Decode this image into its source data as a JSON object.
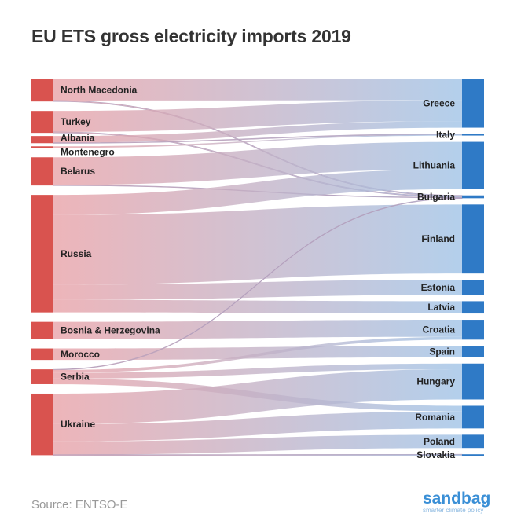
{
  "chart_data": {
    "type": "sankey",
    "title": "EU ETS gross electricity imports 2019",
    "source_label": "Source: ENTSO-E",
    "brand": "sandbag",
    "brand_tagline": "smarter climate policy",
    "colors": {
      "source_node": "#d9534f",
      "target_node": "#2f7ac6",
      "link_start": "#e8a0a6",
      "link_end": "#9ec2e6"
    },
    "sources": [
      "North Macedonia",
      "Turkey",
      "Albania",
      "Montenegro",
      "Belarus",
      "Russia",
      "Bosnia & Herzegovina",
      "Morocco",
      "Serbia",
      "Ukraine"
    ],
    "targets": [
      "Greece",
      "Italy",
      "Lithuania",
      "Bulgaria",
      "Finland",
      "Estonia",
      "Latvia",
      "Croatia",
      "Spain",
      "Hungary",
      "Romania",
      "Poland",
      "Slovakia"
    ],
    "links": [
      {
        "from": "North Macedonia",
        "to": "Greece",
        "value": 2.3
      },
      {
        "from": "North Macedonia",
        "to": "Bulgaria",
        "value": 0.1
      },
      {
        "from": "Turkey",
        "to": "Greece",
        "value": 2.2
      },
      {
        "from": "Turkey",
        "to": "Bulgaria",
        "value": 0.1
      },
      {
        "from": "Albania",
        "to": "Greece",
        "value": 0.7
      },
      {
        "from": "Albania",
        "to": "Italy",
        "value": 0.05
      },
      {
        "from": "Montenegro",
        "to": "Italy",
        "value": 0.05
      },
      {
        "from": "Belarus",
        "to": "Lithuania",
        "value": 2.9
      },
      {
        "from": "Belarus",
        "to": "Bulgaria",
        "value": 0.05
      },
      {
        "from": "Russia",
        "to": "Lithuania",
        "value": 2.1
      },
      {
        "from": "Russia",
        "to": "Finland",
        "value": 7.3
      },
      {
        "from": "Russia",
        "to": "Estonia",
        "value": 1.6
      },
      {
        "from": "Russia",
        "to": "Latvia",
        "value": 1.3
      },
      {
        "from": "Bosnia & Herzegovina",
        "to": "Croatia",
        "value": 1.8
      },
      {
        "from": "Morocco",
        "to": "Spain",
        "value": 1.2
      },
      {
        "from": "Serbia",
        "to": "Bulgaria",
        "value": 0.05
      },
      {
        "from": "Serbia",
        "to": "Croatia",
        "value": 0.3
      },
      {
        "from": "Serbia",
        "to": "Hungary",
        "value": 0.6
      },
      {
        "from": "Serbia",
        "to": "Romania",
        "value": 0.6
      },
      {
        "from": "Ukraine",
        "to": "Hungary",
        "value": 3.2
      },
      {
        "from": "Ukraine",
        "to": "Romania",
        "value": 1.8
      },
      {
        "from": "Ukraine",
        "to": "Poland",
        "value": 1.4
      },
      {
        "from": "Ukraine",
        "to": "Slovakia",
        "value": 0.05
      }
    ]
  }
}
